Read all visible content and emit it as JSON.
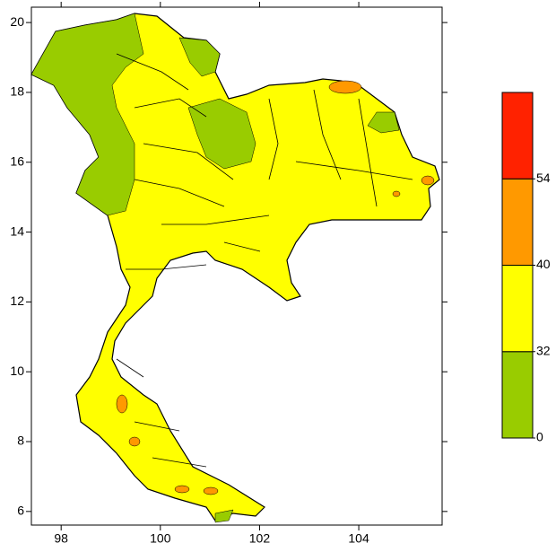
{
  "map": {
    "xlim": [
      97.4,
      105.68
    ],
    "ylim": [
      5.61,
      20.44
    ],
    "xticks": [
      98,
      100,
      102,
      104
    ],
    "yticks": [
      6,
      8,
      10,
      12,
      14,
      16,
      18,
      20
    ],
    "colorbar": {
      "colors": [
        "#99cc00",
        "#ffff00",
        "#ff9900",
        "#ff2200"
      ],
      "labels": [
        0,
        32,
        40,
        54
      ]
    }
  }
}
